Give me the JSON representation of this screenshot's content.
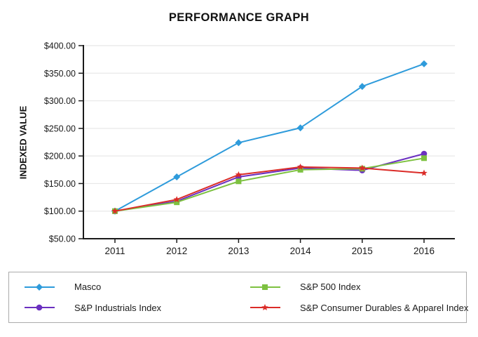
{
  "chart_data": {
    "type": "line",
    "title": "PERFORMANCE GRAPH",
    "ylabel": "INDEXED VALUE",
    "xlabel": "",
    "categories": [
      "2011",
      "2012",
      "2013",
      "2014",
      "2015",
      "2016"
    ],
    "ylim": [
      50,
      400
    ],
    "grid": true,
    "legend_position": "bottom",
    "y_ticks": [
      {
        "value": 50,
        "label": "$50.00"
      },
      {
        "value": 100,
        "label": "$100.00"
      },
      {
        "value": 150,
        "label": "$150.00"
      },
      {
        "value": 200,
        "label": "$200.00"
      },
      {
        "value": 250,
        "label": "$250.00"
      },
      {
        "value": 300,
        "label": "$300.00"
      },
      {
        "value": 350,
        "label": "$350.00"
      },
      {
        "value": 400,
        "label": "$400.00"
      }
    ],
    "series": [
      {
        "name": "Masco",
        "color": "#2e9bdb",
        "marker": "diamond",
        "values": [
          100,
          162,
          224,
          251,
          326,
          367
        ]
      },
      {
        "name": "S&P Industrials Index",
        "color": "#6b30c0",
        "marker": "circle",
        "values": [
          100,
          118,
          162,
          178,
          174,
          204
        ]
      },
      {
        "name": "S&P 500 Index",
        "color": "#7dc140",
        "marker": "square",
        "values": [
          100,
          116,
          154,
          175,
          177,
          196
        ]
      },
      {
        "name": "S&P Consumer Durables & Apparel Index",
        "color": "#db2c28",
        "marker": "star",
        "values": [
          100,
          121,
          166,
          180,
          178,
          169
        ]
      }
    ]
  },
  "colors": {
    "axis": "#1a1a1a",
    "gridline": "#e8e8e8",
    "tick_text": "#1a1a1a",
    "legend_border": "#ababab"
  }
}
